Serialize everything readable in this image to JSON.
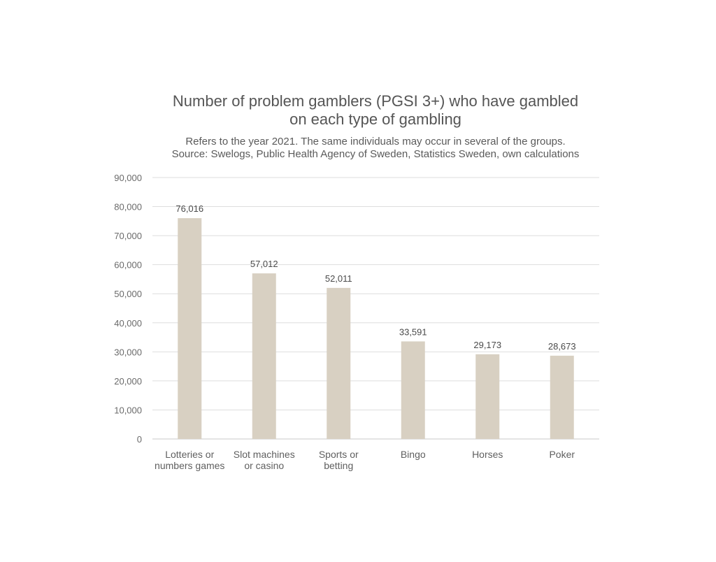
{
  "chart_data": {
    "type": "bar",
    "title": [
      "Number of problem gamblers (PGSI 3+) who have gambled",
      "on each type of gambling"
    ],
    "subtitle": [
      "Refers to the year 2021. The same individuals may occur in several of the groups.",
      "Source: Swelogs, Public Health Agency of Sweden, Statistics Sweden, own calculations"
    ],
    "categories": [
      [
        "Lotteries or",
        "numbers games"
      ],
      [
        "Slot machines",
        "or casino"
      ],
      [
        "Sports or",
        "betting"
      ],
      [
        "Bingo"
      ],
      [
        "Horses"
      ],
      [
        "Poker"
      ]
    ],
    "values": [
      76016,
      57012,
      52011,
      33591,
      29173,
      28673
    ],
    "data_labels": [
      "76,016",
      "57,012",
      "52,011",
      "33,591",
      "29,173",
      "28,673"
    ],
    "ylim": [
      0,
      90000
    ],
    "yticks": [
      0,
      10000,
      20000,
      30000,
      40000,
      50000,
      60000,
      70000,
      80000,
      90000
    ],
    "ytick_labels": [
      "0",
      "10,000",
      "20,000",
      "30,000",
      "40,000",
      "50,000",
      "60,000",
      "70,000",
      "80,000",
      "90,000"
    ],
    "xlabel": "",
    "ylabel": "",
    "grid": true,
    "legend": "none",
    "bar_color": "#d8d0c2"
  }
}
